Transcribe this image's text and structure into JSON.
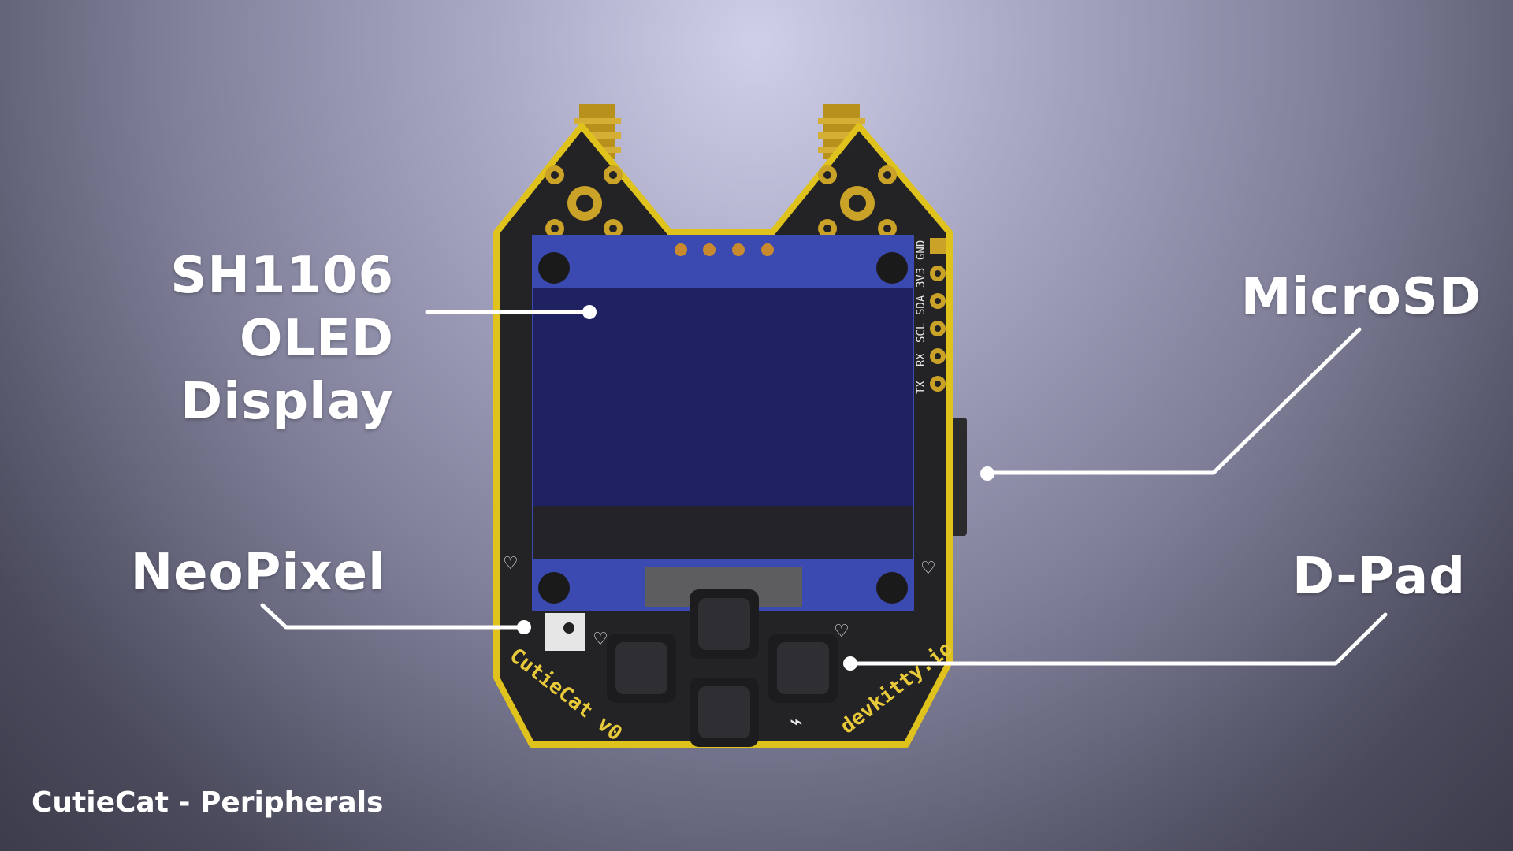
{
  "labels": {
    "oled_line1": "SH1106 OLED",
    "oled_line2": "Display",
    "microsd": "MicroSD",
    "neopixel": "NeoPixel",
    "dpad": "D-Pad"
  },
  "footer": {
    "caption": "CutieCat - Peripherals"
  },
  "board": {
    "silkscreen_left": "CutieCat v0",
    "silkscreen_right": "devkitty.io",
    "pins": [
      "GND",
      "3V3",
      "SDA",
      "SCL",
      "RX",
      "TX"
    ]
  },
  "colors": {
    "pcb": "#232326",
    "pcb_edge": "#e0c21d",
    "oled_module": "#3b4ab0",
    "oled_screen": "#1f2160",
    "gold": "#c9a227"
  },
  "icons": [
    "heart-icon",
    "wifi-icon",
    "usb-icon",
    "laptop-icon",
    "battery-icon"
  ]
}
